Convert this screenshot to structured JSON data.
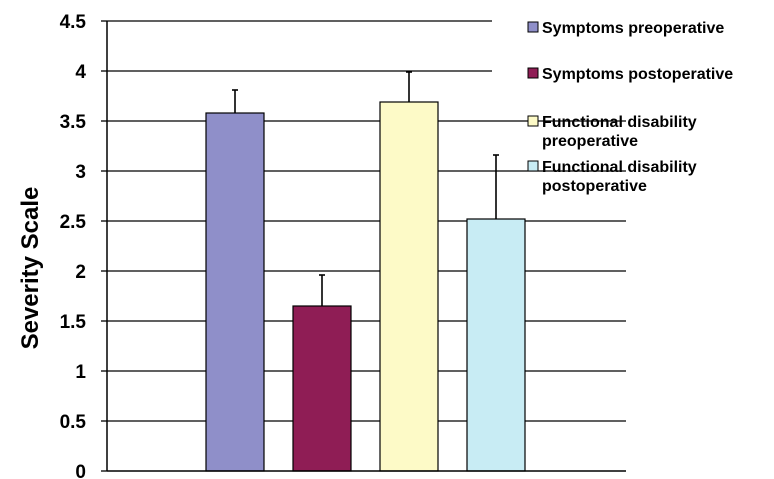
{
  "chart_data": {
    "type": "bar",
    "title": "",
    "xlabel": "",
    "ylabel": "Severity Scale",
    "ylim": [
      0,
      4.5
    ],
    "yticks": [
      "0",
      "0.5",
      "1",
      "1.5",
      "2",
      "2.5",
      "3",
      "3.5",
      "4",
      "4.5"
    ],
    "grid": true,
    "legend_position": "top-right",
    "series": [
      {
        "name": "Symptoms preoperative",
        "name_lines": [
          "Symptoms preoperative"
        ],
        "value": 3.58,
        "error": 0.23,
        "color": "#8f8fc9"
      },
      {
        "name": "Symptoms postoperative",
        "name_lines": [
          "Symptoms postoperative"
        ],
        "value": 1.65,
        "error": 0.31,
        "color": "#8f1d55"
      },
      {
        "name": "Functional disability preoperative",
        "name_lines": [
          "Functional disability",
          "preoperative"
        ],
        "value": 3.69,
        "error": 0.3,
        "color": "#fdfac7"
      },
      {
        "name": "Functional disability postoperative",
        "name_lines": [
          "Functional disability",
          "postoperative"
        ],
        "value": 2.52,
        "error": 0.64,
        "color": "#c8ecf4"
      }
    ]
  }
}
